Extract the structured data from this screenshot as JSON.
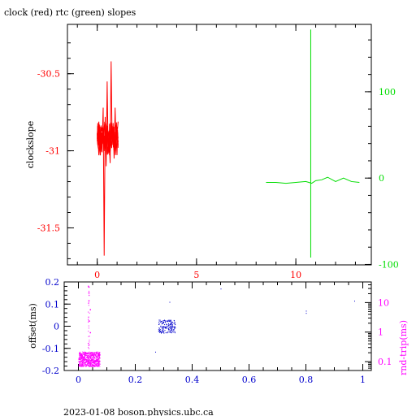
{
  "title": "clock (red) rtc (green) slopes",
  "footer": "2023-01-08  boson.physics.ubc.ca",
  "colors": {
    "clock": "#ff0000",
    "rtc": "#00dd00",
    "offset": "#0000cc",
    "rndtrip": "#ff00ff",
    "frame": "#000000"
  },
  "chart_data": [
    {
      "type": "line",
      "title": "clock (red) rtc (green) slopes",
      "ylabel": "clockslope",
      "xlim": [
        -1.5,
        13.8
      ],
      "ylim": [
        -31.74,
        -30.18
      ],
      "x_ticks": [
        "0",
        "5",
        "10"
      ],
      "x_tick_values": [
        0,
        5,
        10
      ],
      "y_ticks": [
        "-30.5",
        "-31",
        "-31.5"
      ],
      "y_tick_values": [
        -30.5,
        -31,
        -31.5
      ],
      "right_axis": {
        "ylim": [
          -100.5,
          178
        ],
        "ticks": [
          "100",
          "0",
          "-100"
        ],
        "tick_values": [
          100,
          0,
          -100
        ]
      },
      "grid": false,
      "series": [
        {
          "name": "clock",
          "axis": "left",
          "x": [
            0.0,
            0.05,
            0.1,
            0.15,
            0.2,
            0.25,
            0.3,
            0.35,
            0.4,
            0.45,
            0.5,
            0.55,
            0.6,
            0.65,
            0.7,
            0.75,
            0.8,
            0.85,
            0.9,
            0.95,
            1.0,
            1.05
          ],
          "y": [
            -30.93,
            -30.98,
            -30.9,
            -31.03,
            -30.88,
            -30.95,
            -30.72,
            -31.68,
            -30.78,
            -31.1,
            -30.55,
            -31.02,
            -30.93,
            -31.08,
            -30.42,
            -30.95,
            -30.82,
            -31.05,
            -30.72,
            -30.98,
            -30.85,
            -30.92
          ]
        },
        {
          "name": "rtc",
          "axis": "right",
          "x": [
            8.5,
            9.0,
            9.5,
            10.0,
            10.5,
            10.8,
            11.0,
            11.3,
            11.6,
            12.0,
            12.4,
            12.8,
            13.2
          ],
          "y": [
            -5,
            -5,
            -6,
            -5,
            -4,
            -6,
            -3,
            -2,
            1,
            -4,
            0,
            -4,
            -5
          ],
          "spike": {
            "x": 10.75,
            "y_min": -92,
            "y_max": 172
          }
        }
      ]
    },
    {
      "type": "scatter",
      "ylabel": "offset(ms)",
      "xlim": [
        -0.05,
        1.03
      ],
      "ylim": [
        -0.2,
        0.2
      ],
      "x_ticks": [
        "0",
        "0.2",
        "0.4",
        "0.6",
        "0.8",
        "1"
      ],
      "x_tick_values": [
        0,
        0.2,
        0.4,
        0.6,
        0.8,
        1
      ],
      "y_ticks": [
        "0.2",
        "0.1",
        "0",
        "-0.1",
        "-0.2"
      ],
      "y_tick_values": [
        0.2,
        0.1,
        0,
        -0.1,
        -0.2
      ],
      "right_axis": {
        "ylabel": "rnd-trip(ms)",
        "scale": "log",
        "ylim": [
          0.05,
          50
        ],
        "ticks": [
          "10",
          "1",
          "0.1"
        ],
        "tick_values": [
          10,
          1,
          0.1
        ]
      },
      "grid": false,
      "series": [
        {
          "name": "offset",
          "axis": "left",
          "cluster": {
            "x_range": [
              0.28,
              0.34
            ],
            "y_range": [
              -0.03,
              0.03
            ]
          },
          "x": [
            0.5,
            0.8,
            0.8,
            0.97,
            0.27,
            0.32
          ],
          "y": [
            0.17,
            0.07,
            0.06,
            0.115,
            -0.115,
            0.11
          ]
        },
        {
          "name": "rnd-trip",
          "axis": "right",
          "cluster": {
            "x_range": [
              0.0,
              0.075
            ],
            "y_range": [
              0.07,
              0.22
            ]
          },
          "x": [
            0.035,
            0.035,
            0.035,
            0.04,
            0.035,
            0.04
          ],
          "y": [
            35,
            22,
            12,
            6,
            2.5,
            1
          ]
        }
      ]
    }
  ]
}
